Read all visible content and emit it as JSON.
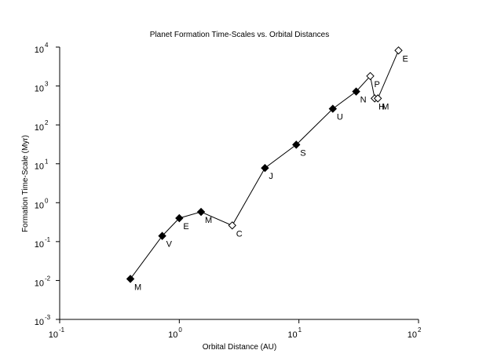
{
  "chart_data": {
    "type": "scatter",
    "title": "Planet Formation Time-Scales vs. Orbital Distances",
    "xlabel": "Orbital Distance (AU)",
    "ylabel": "Formation Time-Scale (Myr)",
    "x_scale": "log",
    "y_scale": "log",
    "xlim": [
      0.1,
      100
    ],
    "ylim": [
      0.001,
      10000
    ],
    "x_ticks": [
      {
        "base": "10",
        "exp": "-1",
        "value": 0.1
      },
      {
        "base": "10",
        "exp": "0",
        "value": 1
      },
      {
        "base": "10",
        "exp": "1",
        "value": 10
      },
      {
        "base": "10",
        "exp": "2",
        "value": 100
      }
    ],
    "y_ticks": [
      {
        "base": "10",
        "exp": "-3",
        "value": 0.001
      },
      {
        "base": "10",
        "exp": "-2",
        "value": 0.01
      },
      {
        "base": "10",
        "exp": "-1",
        "value": 0.1
      },
      {
        "base": "10",
        "exp": "0",
        "value": 1
      },
      {
        "base": "10",
        "exp": "1",
        "value": 10
      },
      {
        "base": "10",
        "exp": "2",
        "value": 100
      },
      {
        "base": "10",
        "exp": "3",
        "value": 1000
      },
      {
        "base": "10",
        "exp": "4",
        "value": 10000
      }
    ],
    "grid": false,
    "line_connected": true,
    "points": [
      {
        "label": "M",
        "x": 0.39,
        "y": 0.011,
        "marker": "filled-diamond"
      },
      {
        "label": "V",
        "x": 0.72,
        "y": 0.14,
        "marker": "filled-diamond"
      },
      {
        "label": "E",
        "x": 1.0,
        "y": 0.4,
        "marker": "filled-diamond"
      },
      {
        "label": "M",
        "x": 1.52,
        "y": 0.58,
        "marker": "filled-diamond"
      },
      {
        "label": "C",
        "x": 2.77,
        "y": 0.26,
        "marker": "open-diamond"
      },
      {
        "label": "J",
        "x": 5.2,
        "y": 7.8,
        "marker": "filled-diamond"
      },
      {
        "label": "S",
        "x": 9.5,
        "y": 31,
        "marker": "filled-diamond"
      },
      {
        "label": "U",
        "x": 19.2,
        "y": 260,
        "marker": "filled-diamond"
      },
      {
        "label": "N",
        "x": 30.1,
        "y": 720,
        "marker": "filled-diamond"
      },
      {
        "label": "P",
        "x": 39.5,
        "y": 1800,
        "marker": "open-diamond"
      },
      {
        "label": "H",
        "x": 43.0,
        "y": 480,
        "marker": "open-diamond"
      },
      {
        "label": "M",
        "x": 45.7,
        "y": 480,
        "marker": "open-diamond"
      },
      {
        "label": "E",
        "x": 68.0,
        "y": 8200,
        "marker": "open-diamond"
      }
    ],
    "colors": {
      "line": "#000000",
      "marker": "#000000",
      "background": "#ffffff"
    }
  }
}
